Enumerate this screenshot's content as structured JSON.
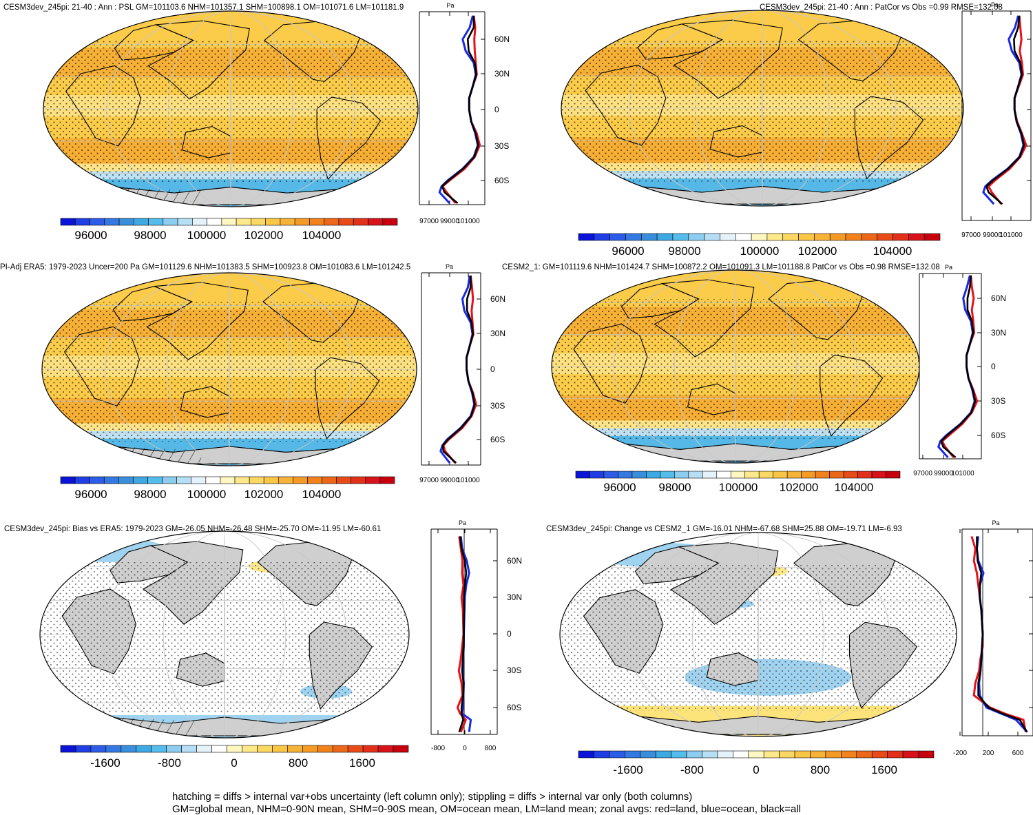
{
  "panels": [
    {
      "title": "CESM3dev_245pi: 21-40 : Ann : PSL GM=101103.6 NHM=101357.1 SHM=100898.1 OM=101071.6 LM=101181.9",
      "kind": "field",
      "hatched": true,
      "colorbar_labels": [
        "96000",
        "98000",
        "100000",
        "102000",
        "104000"
      ],
      "zonal_units": "Pa",
      "zonal_tick_labels": [
        "97000",
        "99000",
        "101000"
      ],
      "lat_labels": [
        "60N",
        "30N",
        "0",
        "30S",
        "60S"
      ]
    },
    {
      "title": "CESM3dev_245pi: 21-40 : Ann : PatCor vs Obs =0.99 RMSE=132.08",
      "kind": "field",
      "hatched": false,
      "colorbar_labels": [
        "96000",
        "98000",
        "100000",
        "102000",
        "104000"
      ],
      "zonal_units": "Pa",
      "zonal_tick_labels": [
        "97000",
        "99000",
        "101000"
      ],
      "lat_labels": [
        "60N",
        "30N",
        "0",
        "30S",
        "60S"
      ]
    },
    {
      "title": "PI-Adj ERA5: 1979-2023 Uncer=200 Pa GM=101129.6 NHM=101383.5 SHM=100923.8 OM=101083.6 LM=101242.5",
      "kind": "field",
      "hatched": true,
      "colorbar_labels": [
        "96000",
        "98000",
        "100000",
        "102000",
        "104000"
      ],
      "zonal_units": "Pa",
      "zonal_tick_labels": [
        "97000",
        "99000",
        "101000"
      ],
      "lat_labels": [
        "60N",
        "30N",
        "0",
        "30S",
        "60S"
      ]
    },
    {
      "title": "CESM2_1: GM=101119.6 NHM=101424.7 SHM=100872.2 OM=101091.3 LM=101188.8 PatCor vs Obs =0.98 RMSE=132.08",
      "kind": "field",
      "hatched": false,
      "colorbar_labels": [
        "96000",
        "98000",
        "100000",
        "102000",
        "104000"
      ],
      "zonal_units": "Pa",
      "zonal_tick_labels": [
        "97000",
        "99000",
        "101000"
      ],
      "lat_labels": [
        "60N",
        "30N",
        "0",
        "30S",
        "60S"
      ]
    },
    {
      "title": "CESM3dev_245pi: Bias vs ERA5: 1979-2023 GM=-26.05 NHM=-26.48 SHM=-25.70 OM=-11.95 LM=-60.61",
      "kind": "diff",
      "hatched": true,
      "colorbar_labels": [
        "-1600",
        "-800",
        "0",
        "800",
        "1600"
      ],
      "zonal_units": "Pa",
      "zonal_tick_labels": [
        "-800",
        "0",
        "800"
      ],
      "lat_labels": [
        "60N",
        "30N",
        "0",
        "30S",
        "60S"
      ]
    },
    {
      "title": "CESM3dev_245pi: Change vs CESM2_1 GM=-16.01 NHM=-67.68 SHM=25.88 OM=-19.71 LM=-6.93",
      "kind": "diff",
      "hatched": false,
      "colorbar_labels": [
        "-1600",
        "-800",
        "0",
        "800",
        "1600"
      ],
      "zonal_units": "Pa",
      "zonal_tick_labels": [
        "-200",
        "200",
        "600"
      ],
      "lat_labels": []
    }
  ],
  "colors": {
    "cbar": [
      "#0a14d8",
      "#1f3ee6",
      "#2c5ce8",
      "#3478e2",
      "#3a8fdc",
      "#3ea9e2",
      "#54bdec",
      "#8ccdf0",
      "#b6def4",
      "#e6f2fa",
      "#ffffff",
      "#fff7c2",
      "#fde88a",
      "#fbd862",
      "#fac646",
      "#f7b238",
      "#f49b26",
      "#f1821c",
      "#ec6818",
      "#e84a18",
      "#e2301a",
      "#d8121a",
      "#c8000e"
    ],
    "ocean_warm": "#fbcb4a",
    "high_band": "#f5ab32",
    "subtropic_light": "#fde48a",
    "south_blue": "#56b8e6",
    "south_light": "#bfe2f5",
    "land_gray": "#cfcfcf",
    "zonal_land": "#e8101a",
    "zonal_ocean": "#1a28e8",
    "zonal_all": "#000000"
  },
  "chart_data": [
    {
      "type": "heatmap",
      "panel": 1,
      "variable": "PSL",
      "units": "Pa",
      "colorbar_range": [
        95000,
        105500
      ],
      "colorbar_step": 500,
      "global_mean": 101103.6,
      "nh_mean": 101357.1,
      "sh_mean": 100898.1,
      "ocean_mean": 101071.6,
      "land_mean": 101181.9,
      "zonal_mean": {
        "lat": [
          80,
          70,
          60,
          50,
          40,
          30,
          20,
          10,
          0,
          -10,
          -20,
          -30,
          -40,
          -50,
          -60,
          -65,
          -70,
          -80
        ],
        "land": [
          101400,
          101550,
          101450,
          101500,
          101600,
          101700,
          101300,
          100950,
          100950,
          101150,
          101700,
          102000,
          101500,
          100500,
          99000,
          98300,
          98700,
          99600
        ],
        "ocean": [
          101300,
          101000,
          100300,
          100600,
          101400,
          101600,
          101300,
          100950,
          100950,
          101150,
          101550,
          101800,
          101400,
          100300,
          98800,
          98200,
          98000,
          99000
        ],
        "all": [
          101400,
          101400,
          100800,
          100900,
          101500,
          101650,
          101300,
          100950,
          100950,
          101150,
          101600,
          101850,
          101450,
          100350,
          98900,
          98250,
          98500,
          99800
        ]
      },
      "zonal_xrange": [
        96000,
        102500
      ]
    },
    {
      "type": "heatmap",
      "panel": 2,
      "variable": "PSL",
      "units": "Pa",
      "colorbar_range": [
        95000,
        105500
      ],
      "colorbar_step": 500,
      "pattern_correlation": 0.99,
      "rmse": 132.08,
      "zonal_mean": {
        "lat": [
          80,
          70,
          60,
          50,
          40,
          30,
          20,
          10,
          0,
          -10,
          -20,
          -30,
          -40,
          -50,
          -60,
          -65,
          -70,
          -80
        ],
        "land": [
          101400,
          101500,
          101600,
          101450,
          101650,
          101750,
          101350,
          100950,
          100950,
          101200,
          101650,
          102050,
          101500,
          100500,
          99100,
          98500,
          98800,
          99700
        ],
        "ocean": [
          101300,
          101000,
          100400,
          100700,
          101400,
          101600,
          101300,
          100950,
          100950,
          101150,
          101550,
          101800,
          101400,
          100300,
          98800,
          98200,
          98000,
          99000
        ],
        "all": [
          101400,
          101300,
          100900,
          100950,
          101500,
          101650,
          101300,
          100950,
          100950,
          101150,
          101600,
          101850,
          101450,
          100350,
          98900,
          98300,
          98500,
          99800
        ]
      },
      "zonal_xrange": [
        96000,
        102500
      ]
    },
    {
      "type": "heatmap",
      "panel": 3,
      "variable": "PSL",
      "units": "Pa",
      "colorbar_range": [
        95000,
        105500
      ],
      "colorbar_step": 500,
      "uncertainty": 200,
      "global_mean": 101129.6,
      "nh_mean": 101383.5,
      "sh_mean": 100923.8,
      "ocean_mean": 101083.6,
      "land_mean": 101242.5,
      "zonal_mean": {
        "lat": [
          80,
          70,
          60,
          50,
          40,
          30,
          20,
          10,
          0,
          -10,
          -20,
          -30,
          -40,
          -50,
          -60,
          -65,
          -70,
          -80
        ],
        "land": [
          101400,
          101550,
          101650,
          101500,
          101600,
          101700,
          101300,
          100950,
          100950,
          101150,
          101650,
          102000,
          101500,
          100500,
          99000,
          98400,
          98600,
          99700
        ],
        "ocean": [
          101300,
          101100,
          100500,
          100700,
          101400,
          101600,
          101300,
          100950,
          100950,
          101150,
          101550,
          101800,
          101400,
          100300,
          98800,
          98300,
          98100,
          99100
        ],
        "all": [
          101400,
          101400,
          101000,
          101000,
          101500,
          101650,
          101300,
          100950,
          100950,
          101150,
          101600,
          101850,
          101450,
          100350,
          98900,
          98350,
          98400,
          99800
        ]
      },
      "zonal_xrange": [
        96000,
        102500
      ]
    },
    {
      "type": "heatmap",
      "panel": 4,
      "variable": "PSL",
      "units": "Pa",
      "colorbar_range": [
        95000,
        105500
      ],
      "colorbar_step": 500,
      "global_mean": 101119.6,
      "nh_mean": 101424.7,
      "sh_mean": 100872.2,
      "ocean_mean": 101091.3,
      "land_mean": 101188.8,
      "pattern_correlation": 0.98,
      "rmse": 132.08,
      "zonal_mean": {
        "lat": [
          80,
          70,
          60,
          50,
          40,
          30,
          20,
          10,
          0,
          -10,
          -20,
          -30,
          -40,
          -50,
          -60,
          -65,
          -70,
          -80
        ],
        "land": [
          101400,
          101500,
          101700,
          101500,
          101650,
          101750,
          101300,
          100950,
          100950,
          101150,
          101650,
          102050,
          101500,
          100500,
          99100,
          98400,
          98700,
          99600
        ],
        "ocean": [
          101300,
          101000,
          100600,
          100800,
          101400,
          101600,
          101300,
          100950,
          100950,
          101150,
          101550,
          101800,
          101400,
          100300,
          98800,
          98200,
          98000,
          99000
        ],
        "all": [
          101400,
          101300,
          101050,
          101050,
          101500,
          101650,
          101300,
          100950,
          100950,
          101150,
          101600,
          101850,
          101450,
          100350,
          98900,
          98300,
          98500,
          99800
        ]
      },
      "zonal_xrange": [
        96000,
        102500
      ]
    },
    {
      "type": "heatmap",
      "panel": 5,
      "variable": "PSL bias",
      "units": "Pa",
      "colorbar_range": [
        -2200,
        2200
      ],
      "colorbar_step": 200,
      "global_mean": -26.05,
      "nh_mean": -26.48,
      "sh_mean": -25.7,
      "ocean_mean": -11.95,
      "land_mean": -60.61,
      "zonal_mean": {
        "lat": [
          80,
          70,
          60,
          50,
          40,
          30,
          20,
          10,
          0,
          -10,
          -20,
          -30,
          -40,
          -50,
          -60,
          -65,
          -70,
          -80
        ],
        "land": [
          -150,
          -100,
          -50,
          -60,
          -20,
          -80,
          -40,
          -30,
          -20,
          -60,
          -100,
          -160,
          -80,
          -50,
          -200,
          -120,
          50,
          -100
        ],
        "ocean": [
          -100,
          -60,
          80,
          150,
          60,
          20,
          10,
          0,
          -10,
          -10,
          -30,
          -40,
          -10,
          -20,
          -40,
          -60,
          200,
          150
        ],
        "all": [
          -120,
          -80,
          20,
          60,
          20,
          -10,
          0,
          -10,
          -10,
          -20,
          -40,
          -60,
          -20,
          -30,
          -80,
          -80,
          -30,
          -150
        ]
      },
      "zonal_xrange": [
        -1000,
        1000
      ]
    },
    {
      "type": "heatmap",
      "panel": 6,
      "variable": "PSL change",
      "units": "Pa",
      "colorbar_range": [
        -2200,
        2200
      ],
      "colorbar_step": 200,
      "global_mean": -16.01,
      "nh_mean": -67.68,
      "sh_mean": 25.88,
      "ocean_mean": -19.71,
      "land_mean": -6.93,
      "zonal_mean": {
        "lat": [
          80,
          70,
          60,
          50,
          40,
          30,
          20,
          10,
          0,
          -10,
          -20,
          -30,
          -40,
          -50,
          -60,
          -65,
          -70,
          -80
        ],
        "land": [
          -150,
          -100,
          -120,
          -80,
          -60,
          -40,
          -20,
          -10,
          0,
          0,
          -30,
          -50,
          -100,
          -120,
          100,
          300,
          550,
          580
        ],
        "ocean": [
          -60,
          -80,
          -60,
          10,
          -40,
          -40,
          -20,
          -10,
          0,
          -10,
          -20,
          -30,
          -50,
          -40,
          50,
          250,
          450,
          600
        ],
        "all": [
          -80,
          -80,
          -70,
          -20,
          -40,
          -40,
          -20,
          -10,
          0,
          -10,
          -20,
          -30,
          -60,
          -60,
          80,
          270,
          500,
          600
        ]
      },
      "zonal_xrange": [
        -280,
        680
      ]
    }
  ],
  "footnote": {
    "line1": "hatching = diffs > internal var+obs uncertainty (left column only); stippling = diffs > internal var only (both columns)",
    "line2": "GM=global mean, NHM=0-90N mean, SHM=0-90S mean, OM=ocean mean, LM=land mean; zonal avgs: red=land, blue=ocean, black=all"
  }
}
